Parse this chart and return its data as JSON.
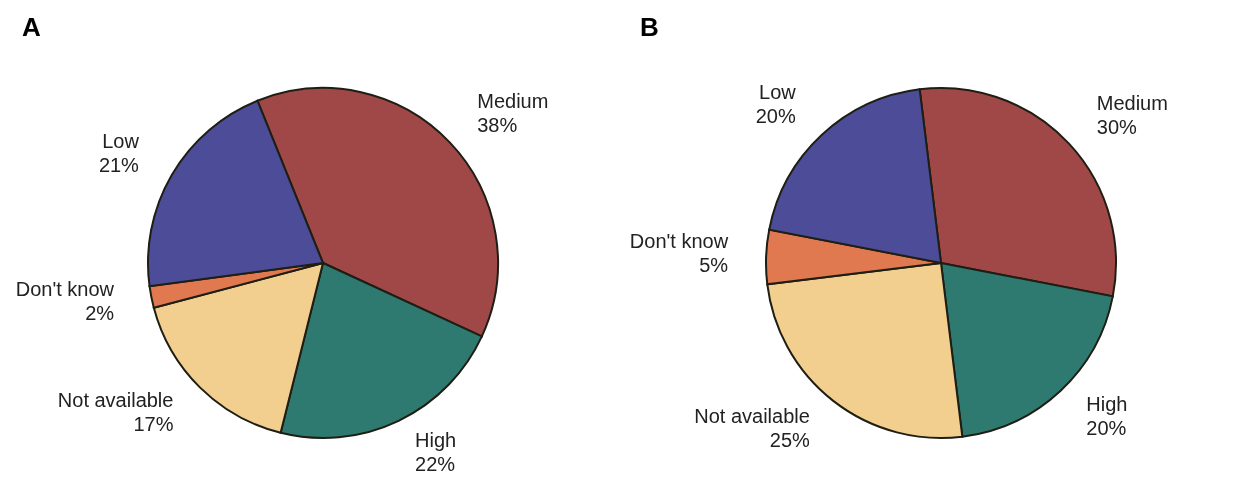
{
  "chart_data": [
    {
      "type": "pie",
      "title": "A",
      "categories": [
        "Medium",
        "High",
        "Not available",
        "Don't know",
        "Low"
      ],
      "values": [
        38,
        22,
        17,
        2,
        21
      ],
      "value_labels": [
        "38%",
        "22%",
        "17%",
        "2%",
        "21%"
      ],
      "colors": [
        "#a04848",
        "#2f7a70",
        "#f2cf8e",
        "#e07850",
        "#4c4c98"
      ]
    },
    {
      "type": "pie",
      "title": "B",
      "categories": [
        "Medium",
        "High",
        "Not available",
        "Don't know",
        "Low"
      ],
      "values": [
        30,
        20,
        25,
        5,
        20
      ],
      "value_labels": [
        "30%",
        "20%",
        "25%",
        "5%",
        "20%"
      ],
      "colors": [
        "#a04848",
        "#2f7a70",
        "#f2cf8e",
        "#e07850",
        "#4c4c98"
      ]
    }
  ]
}
